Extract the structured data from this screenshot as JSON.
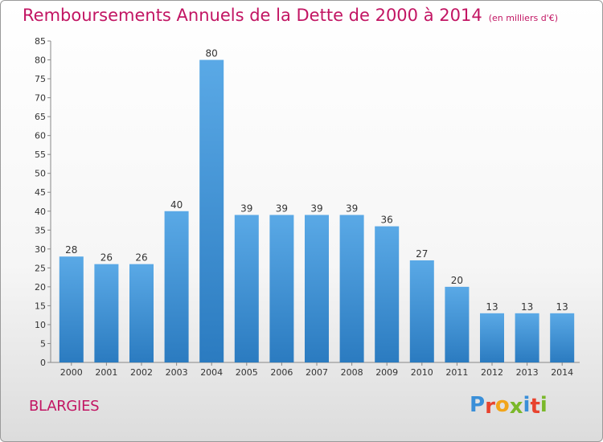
{
  "header": {
    "title": "Remboursements Annuels de la Dette de 2000 à 2014",
    "subtitle": "(en milliers d'€)"
  },
  "footer": {
    "commune": "BLARGIES",
    "logo_text": "Proxiti",
    "logo_colors": [
      "#3a8fd8",
      "#e8432e",
      "#f2a51a",
      "#7ab82a",
      "#3a8fd8",
      "#e8432e",
      "#7ab82a"
    ]
  },
  "chart_data": {
    "type": "bar",
    "title": "Remboursements Annuels de la Dette de 2000 à 2014",
    "subtitle": "(en milliers d'€)",
    "categories": [
      "2000",
      "2001",
      "2002",
      "2003",
      "2004",
      "2005",
      "2006",
      "2007",
      "2008",
      "2009",
      "2010",
      "2011",
      "2012",
      "2013",
      "2014"
    ],
    "values": [
      28,
      26,
      26,
      40,
      80,
      39,
      39,
      39,
      39,
      36,
      27,
      20,
      13,
      13,
      13
    ],
    "ylim": [
      0,
      85
    ],
    "yticks": [
      0,
      5,
      10,
      15,
      20,
      25,
      30,
      35,
      40,
      45,
      50,
      55,
      60,
      65,
      70,
      75,
      80,
      85
    ],
    "grid": false,
    "legend": "none",
    "bar_color_top": "#5aa9e6",
    "bar_color_bottom": "#2b7bc0"
  }
}
